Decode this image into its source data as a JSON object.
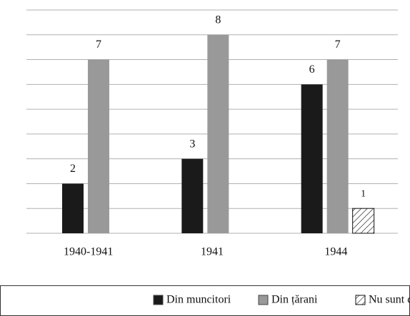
{
  "chart_data": {
    "type": "bar",
    "categories": [
      "1940-1941",
      "1941",
      "1944"
    ],
    "series": [
      {
        "name": "Din muncitori",
        "color": "#1a1a1a",
        "values": [
          2,
          3,
          6
        ]
      },
      {
        "name": "Din țărani",
        "color": "#999999",
        "values": [
          7,
          8,
          7
        ]
      },
      {
        "name": "Nu sunt date",
        "color": "#ffffff",
        "hatch": true,
        "values": [
          null,
          null,
          1
        ]
      }
    ],
    "ylim": [
      0,
      9
    ],
    "yticks": [
      0,
      1,
      2,
      3,
      4,
      5,
      6,
      7,
      8,
      9
    ],
    "grid": true,
    "legend": "bottom"
  }
}
